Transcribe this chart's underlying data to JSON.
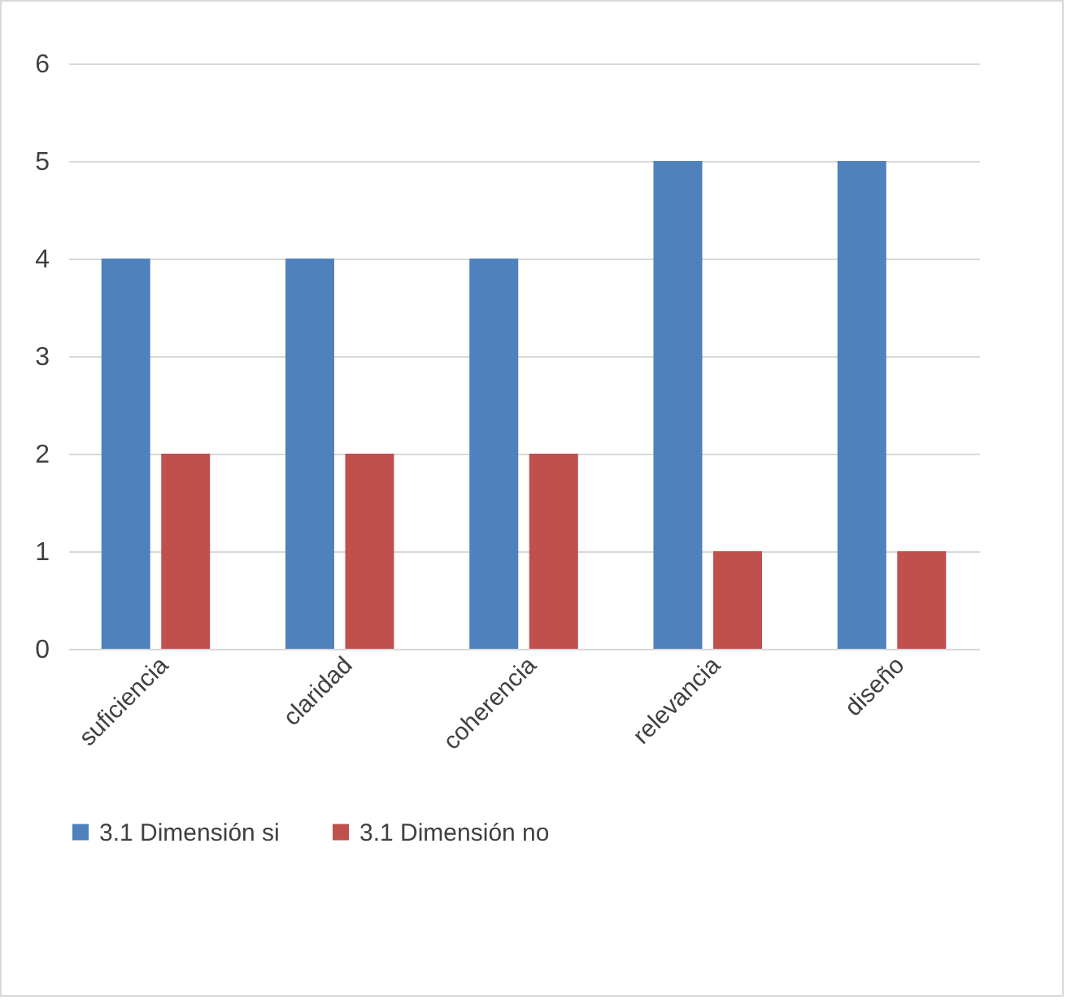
{
  "chart_data": {
    "type": "bar",
    "categories": [
      "suficiencia",
      "claridad",
      "coherencia",
      "relevancia",
      "diseño"
    ],
    "series": [
      {
        "name": "3.1 Dimensión si",
        "color": "#4f81bd",
        "values": [
          4,
          4,
          4,
          5,
          5
        ]
      },
      {
        "name": "3.1 Dimensión no",
        "color": "#c0504d",
        "values": [
          2,
          2,
          2,
          1,
          1
        ]
      }
    ],
    "ylim": [
      0,
      6
    ],
    "yticks": [
      0,
      1,
      2,
      3,
      4,
      5,
      6
    ],
    "grid": "y",
    "legend": "bottom"
  }
}
